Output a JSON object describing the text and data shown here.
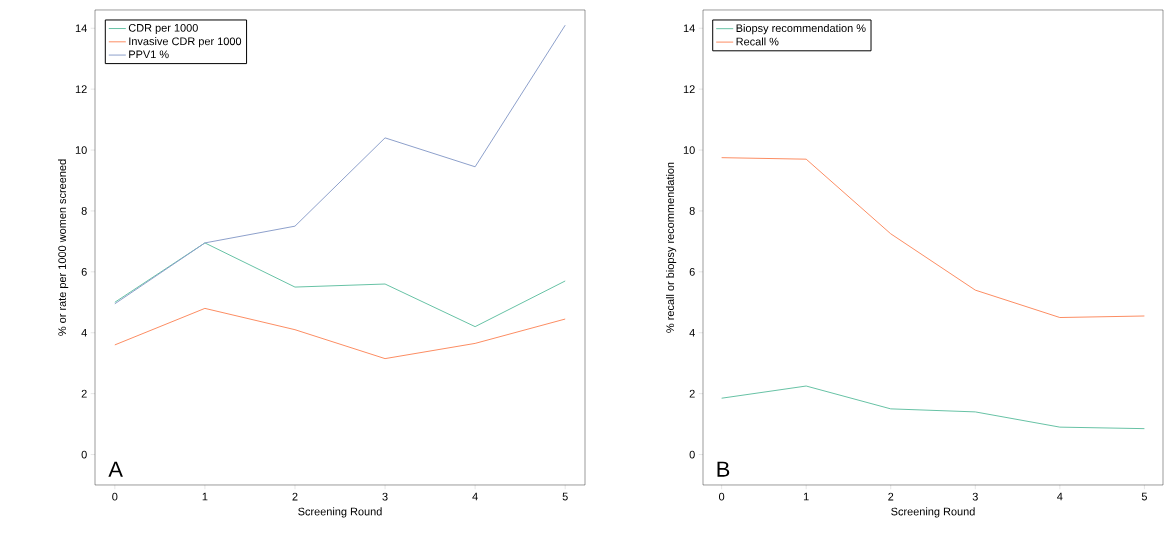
{
  "chart_data": [
    {
      "type": "line",
      "x": [
        0,
        1,
        2,
        3,
        4,
        5
      ],
      "xlim": [
        -0.22,
        5.22
      ],
      "ylim": [
        -1,
        14.6
      ],
      "xticks": [
        0,
        1,
        2,
        3,
        4,
        5
      ],
      "yticks": [
        0,
        2,
        4,
        6,
        8,
        10,
        12,
        14
      ],
      "xlabel": "Screening Round",
      "ylabel": "% or rate per 1000 women screened",
      "legend": "top left",
      "grid": false,
      "annotations": [
        "A"
      ],
      "series": [
        {
          "name": "CDR per 1000",
          "color": "#66c2a5",
          "values": [
            5.0,
            6.95,
            5.5,
            5.6,
            4.2,
            5.7
          ]
        },
        {
          "name": "Invasive CDR per 1000",
          "color": "#fc8d62",
          "values": [
            3.6,
            4.8,
            4.1,
            3.15,
            3.65,
            4.45
          ]
        },
        {
          "name": "PPV1 %",
          "color": "#8da0cb",
          "values": [
            4.95,
            6.95,
            7.5,
            10.4,
            9.45,
            14.1
          ]
        }
      ]
    },
    {
      "type": "line",
      "x": [
        0,
        1,
        2,
        3,
        4,
        5
      ],
      "xlim": [
        -0.22,
        5.22
      ],
      "ylim": [
        -1,
        14.6
      ],
      "xticks": [
        0,
        1,
        2,
        3,
        4,
        5
      ],
      "yticks": [
        0,
        2,
        4,
        6,
        8,
        10,
        12,
        14
      ],
      "xlabel": "Screening Round",
      "ylabel": "% recall or biopsy recommendation",
      "legend": "top left",
      "grid": false,
      "annotations": [
        "B"
      ],
      "series": [
        {
          "name": "Biopsy recommendation %",
          "color": "#66c2a5",
          "values": [
            1.85,
            2.25,
            1.5,
            1.4,
            0.9,
            0.85
          ]
        },
        {
          "name": "Recall %",
          "color": "#fc8d62",
          "values": [
            9.75,
            9.7,
            7.25,
            5.4,
            4.5,
            4.55
          ]
        }
      ]
    }
  ]
}
